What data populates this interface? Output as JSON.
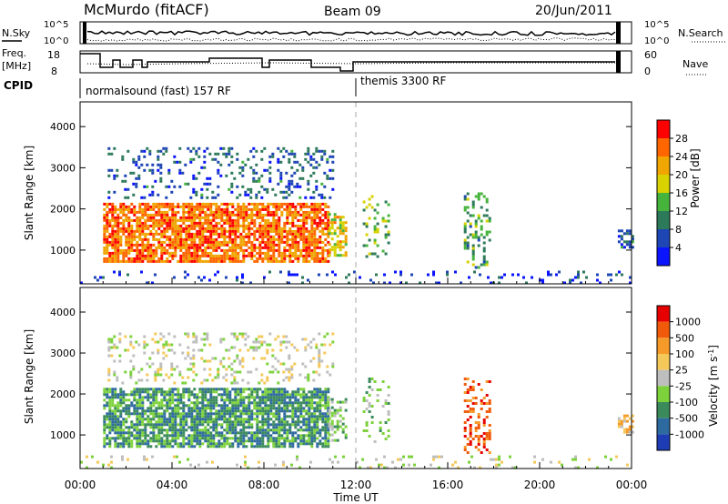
{
  "header": {
    "station": "McMurdo (fitACF)",
    "beam": "Beam 09",
    "date": "20/Jun/2011"
  },
  "strip_panels": {
    "nsky": {
      "left_label": "N.Sky",
      "right_label": "N.Search",
      "left_ticks": [
        "10^5",
        "10^0"
      ],
      "right_ticks": [
        "10^5",
        "10^0"
      ]
    },
    "freq": {
      "left_label_1": "Freq.",
      "left_label_2": "[MHz]",
      "right_label": "Nave",
      "left_ticks": [
        "18",
        "8"
      ],
      "right_ticks": [
        "60",
        "0"
      ]
    },
    "cpid": {
      "label": "CPID",
      "segments": [
        {
          "name": "normalsound (fast) 157 RF",
          "start_hour": 0
        },
        {
          "name": "themis 3300 RF",
          "start_hour": 12
        }
      ]
    }
  },
  "chart_data": [
    {
      "type": "heatmap",
      "name": "power",
      "x_range_hours": [
        0,
        24
      ],
      "ylim": [
        180,
        4600
      ],
      "ylabel": "Slant Range [km]",
      "yticks": [
        "1000",
        "2000",
        "3000",
        "4000"
      ],
      "colorbar": {
        "label": "Power [dB]",
        "ticks": [
          "4",
          "8",
          "12",
          "16",
          "20",
          "24",
          "28"
        ],
        "colors": [
          "#0a14ff",
          "#1e46b4",
          "#2d7a5a",
          "#46b43c",
          "#d7d200",
          "#f0a500",
          "#ff6600",
          "#ff0000"
        ]
      },
      "scatter_regions": [
        {
          "x": [
            1.0,
            10.8
          ],
          "y": [
            750,
            2150
          ],
          "density": 0.78,
          "level": 5.8
        },
        {
          "x": [
            1.2,
            11.0
          ],
          "y": [
            2300,
            3500
          ],
          "density": 0.22,
          "level": 1.3
        },
        {
          "x": [
            10.8,
            11.6
          ],
          "y": [
            900,
            1900
          ],
          "density": 0.5,
          "level": 4.3
        },
        {
          "x": [
            12.3,
            13.4
          ],
          "y": [
            850,
            2400
          ],
          "density": 0.2,
          "level": 3.0
        },
        {
          "x": [
            16.7,
            17.8
          ],
          "y": [
            600,
            2400
          ],
          "density": 0.3,
          "level": 2.6
        },
        {
          "x": [
            23.4,
            24.0
          ],
          "y": [
            1100,
            1500
          ],
          "density": 0.6,
          "level": 1.5
        },
        {
          "x": [
            0.0,
            24.0
          ],
          "y": [
            180,
            500
          ],
          "density": 0.12,
          "level": 0.8
        }
      ]
    },
    {
      "type": "heatmap",
      "name": "velocity",
      "x_range_hours": [
        0,
        24
      ],
      "ylim": [
        180,
        4600
      ],
      "ylabel": "Slant Range [km]",
      "yticks": [
        "1000",
        "2000",
        "3000",
        "4000"
      ],
      "colorbar": {
        "label": "Velocity [m s^-1]",
        "ticks": [
          "1000",
          "500",
          "100",
          "25",
          "-25",
          "-100",
          "-500",
          "-1000"
        ],
        "colors": [
          "#1e3cb4",
          "#2d6aa0",
          "#3a8a5c",
          "#7dd23c",
          "#bebebe",
          "#f5c85a",
          "#f59a28",
          "#f05a0a",
          "#e60000"
        ]
      },
      "scatter_regions": [
        {
          "x": [
            1.0,
            10.8
          ],
          "y": [
            750,
            2150
          ],
          "density": 0.8,
          "level": 2
        },
        {
          "x": [
            1.2,
            11.0
          ],
          "y": [
            2300,
            3500
          ],
          "density": 0.2,
          "level": 4
        },
        {
          "x": [
            10.8,
            11.6
          ],
          "y": [
            900,
            1900
          ],
          "density": 0.5,
          "level": 3
        },
        {
          "x": [
            12.3,
            13.4
          ],
          "y": [
            850,
            2400
          ],
          "density": 0.2,
          "level": 3
        },
        {
          "x": [
            16.7,
            17.8
          ],
          "y": [
            600,
            2400
          ],
          "density": 0.35,
          "level": 7
        },
        {
          "x": [
            23.4,
            24.0
          ],
          "y": [
            1100,
            1500
          ],
          "density": 0.6,
          "level": 5
        },
        {
          "x": [
            0.0,
            24.0
          ],
          "y": [
            180,
            500
          ],
          "density": 0.12,
          "level": 4
        }
      ]
    }
  ],
  "x_axis": {
    "ticks": [
      "00:00",
      "04:00",
      "08:00",
      "12:00",
      "16:00",
      "20:00",
      "00:00"
    ],
    "label": "Time UT"
  }
}
